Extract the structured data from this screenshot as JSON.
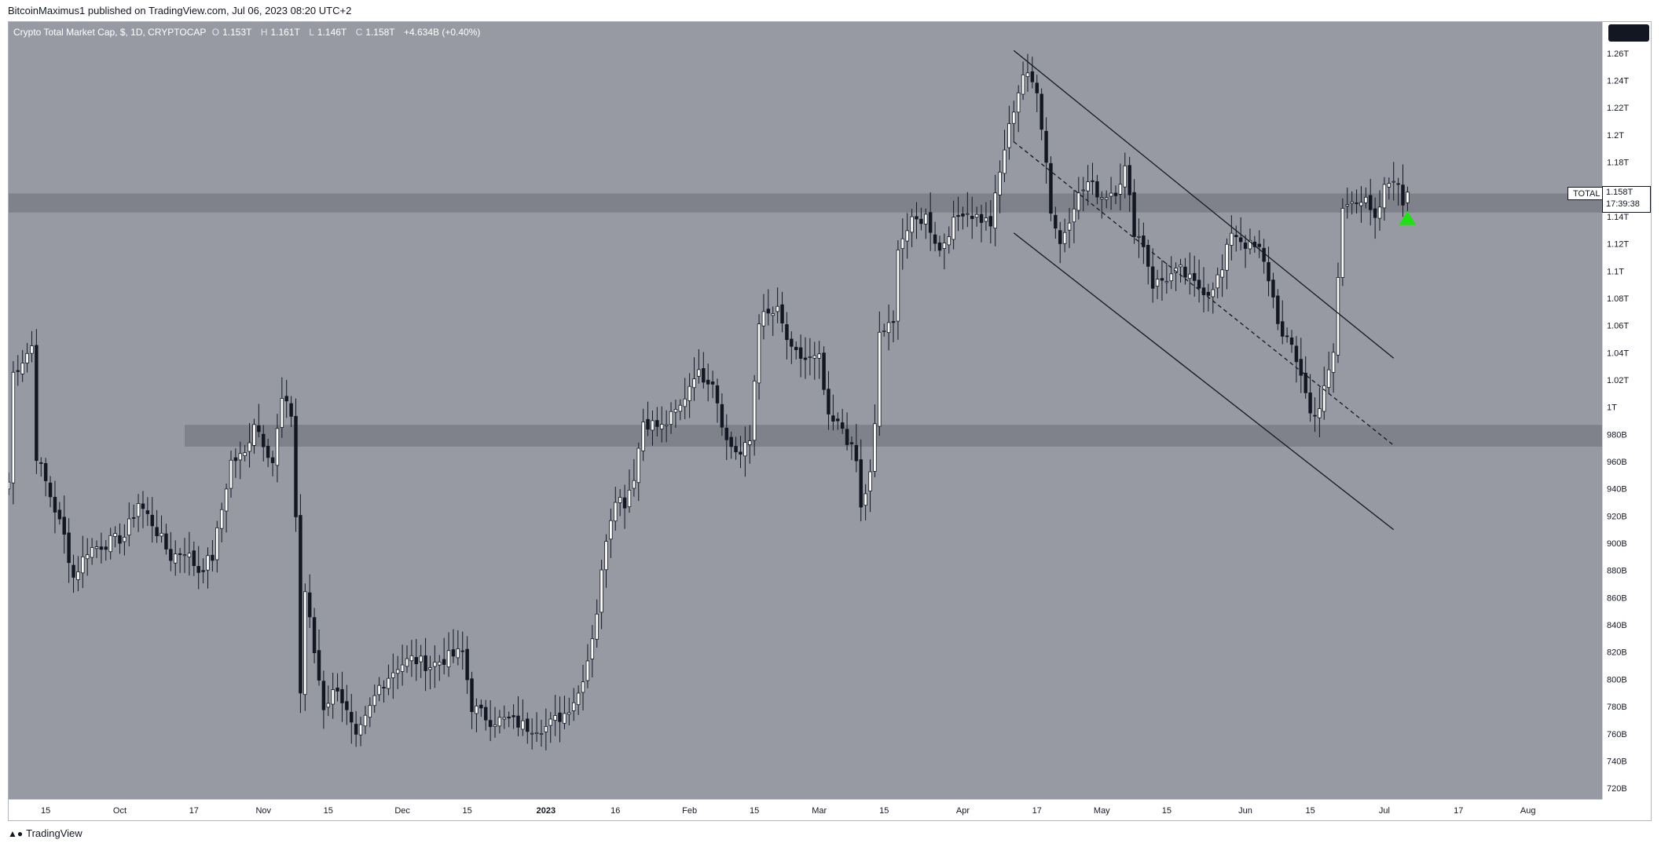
{
  "header": {
    "publisher_line": "BitcoinMaximus1 published on TradingView.com, Jul 06, 2023 08:20 UTC+2"
  },
  "legend": {
    "title": "Crypto Total Market Cap, $, 1D, CRYPTOCAP",
    "o_label": "O",
    "o_value": "1.153T",
    "h_label": "H",
    "h_value": "1.161T",
    "l_label": "L",
    "l_value": "1.146T",
    "c_label": "C",
    "c_value": "1.158T",
    "change": "+4.634B (+0.40%)"
  },
  "series_tag": "TOTAL",
  "last_price": {
    "value": "1.158T",
    "countdown": "17:39:38"
  },
  "footer": {
    "logo_icon": "tradingview-logo-icon",
    "brand": "TradingView"
  },
  "colors": {
    "plot_bg": "#979aa3",
    "zone": "#7f828b",
    "up_candle": "#ffffff",
    "down_candle": "#131722",
    "arrow": "#22e018"
  },
  "chart_data": {
    "type": "candlestick",
    "y_unit": "USD (T = trillion, B = billion)",
    "ylim": [
      0.712,
      1.283
    ],
    "y_ticks": [
      {
        "value": 1.26,
        "label": "1.26T"
      },
      {
        "value": 1.24,
        "label": "1.24T"
      },
      {
        "value": 1.22,
        "label": "1.22T"
      },
      {
        "value": 1.2,
        "label": "1.2T"
      },
      {
        "value": 1.18,
        "label": "1.18T"
      },
      {
        "value": 1.14,
        "label": "1.14T"
      },
      {
        "value": 1.12,
        "label": "1.12T"
      },
      {
        "value": 1.1,
        "label": "1.1T"
      },
      {
        "value": 1.08,
        "label": "1.08T"
      },
      {
        "value": 1.06,
        "label": "1.06T"
      },
      {
        "value": 1.04,
        "label": "1.04T"
      },
      {
        "value": 1.02,
        "label": "1.02T"
      },
      {
        "value": 1.0,
        "label": "1T"
      },
      {
        "value": 0.98,
        "label": "980B"
      },
      {
        "value": 0.96,
        "label": "960B"
      },
      {
        "value": 0.94,
        "label": "940B"
      },
      {
        "value": 0.92,
        "label": "920B"
      },
      {
        "value": 0.9,
        "label": "900B"
      },
      {
        "value": 0.88,
        "label": "880B"
      },
      {
        "value": 0.86,
        "label": "860B"
      },
      {
        "value": 0.84,
        "label": "840B"
      },
      {
        "value": 0.82,
        "label": "820B"
      },
      {
        "value": 0.8,
        "label": "800B"
      },
      {
        "value": 0.78,
        "label": "780B"
      },
      {
        "value": 0.76,
        "label": "760B"
      },
      {
        "value": 0.74,
        "label": "740B"
      },
      {
        "value": 0.72,
        "label": "720B"
      }
    ],
    "x_start": "2022-09-07",
    "x_end": "2023-08-17",
    "x_ticks": [
      {
        "date": "2022-09-15",
        "label": "15"
      },
      {
        "date": "2022-10-01",
        "label": "Oct"
      },
      {
        "date": "2022-10-17",
        "label": "17"
      },
      {
        "date": "2022-11-01",
        "label": "Nov"
      },
      {
        "date": "2022-11-15",
        "label": "15"
      },
      {
        "date": "2022-12-01",
        "label": "Dec"
      },
      {
        "date": "2022-12-15",
        "label": "15"
      },
      {
        "date": "2023-01-01",
        "label": "2023"
      },
      {
        "date": "2023-01-16",
        "label": "16"
      },
      {
        "date": "2023-02-01",
        "label": "Feb"
      },
      {
        "date": "2023-02-15",
        "label": "15"
      },
      {
        "date": "2023-03-01",
        "label": "Mar"
      },
      {
        "date": "2023-03-15",
        "label": "15"
      },
      {
        "date": "2023-04-01",
        "label": "Apr"
      },
      {
        "date": "2023-04-17",
        "label": "17"
      },
      {
        "date": "2023-05-01",
        "label": "May"
      },
      {
        "date": "2023-05-15",
        "label": "15"
      },
      {
        "date": "2023-06-01",
        "label": "Jun"
      },
      {
        "date": "2023-06-15",
        "label": "15"
      },
      {
        "date": "2023-07-01",
        "label": "Jul"
      },
      {
        "date": "2023-07-17",
        "label": "17"
      },
      {
        "date": "2023-08-01",
        "label": "Aug"
      }
    ],
    "close_path": [
      [
        "2022-09-07",
        0.945
      ],
      [
        "2022-09-08",
        1.025
      ],
      [
        "2022-09-12",
        1.045
      ],
      [
        "2022-09-13",
        0.965
      ],
      [
        "2022-09-16",
        0.935
      ],
      [
        "2022-09-19",
        0.905
      ],
      [
        "2022-09-21",
        0.875
      ],
      [
        "2022-09-24",
        0.895
      ],
      [
        "2022-09-28",
        0.9
      ],
      [
        "2022-10-02",
        0.905
      ],
      [
        "2022-10-05",
        0.93
      ],
      [
        "2022-10-08",
        0.915
      ],
      [
        "2022-10-12",
        0.89
      ],
      [
        "2022-10-15",
        0.895
      ],
      [
        "2022-10-18",
        0.88
      ],
      [
        "2022-10-21",
        0.89
      ],
      [
        "2022-10-25",
        0.96
      ],
      [
        "2022-10-28",
        0.965
      ],
      [
        "2022-10-30",
        0.99
      ],
      [
        "2022-11-01",
        0.975
      ],
      [
        "2022-11-03",
        0.96
      ],
      [
        "2022-11-05",
        1.005
      ],
      [
        "2022-11-07",
        0.995
      ],
      [
        "2022-11-08",
        0.92
      ],
      [
        "2022-11-09",
        0.79
      ],
      [
        "2022-11-10",
        0.865
      ],
      [
        "2022-11-12",
        0.82
      ],
      [
        "2022-11-14",
        0.78
      ],
      [
        "2022-11-17",
        0.795
      ],
      [
        "2022-11-21",
        0.755
      ],
      [
        "2022-11-23",
        0.77
      ],
      [
        "2022-11-26",
        0.795
      ],
      [
        "2022-11-30",
        0.81
      ],
      [
        "2022-12-03",
        0.815
      ],
      [
        "2022-12-07",
        0.81
      ],
      [
        "2022-12-10",
        0.815
      ],
      [
        "2022-12-14",
        0.82
      ],
      [
        "2022-12-16",
        0.78
      ],
      [
        "2022-12-20",
        0.77
      ],
      [
        "2022-12-24",
        0.77
      ],
      [
        "2022-12-28",
        0.765
      ],
      [
        "2023-01-01",
        0.765
      ],
      [
        "2023-01-05",
        0.775
      ],
      [
        "2023-01-08",
        0.79
      ],
      [
        "2023-01-10",
        0.815
      ],
      [
        "2023-01-12",
        0.85
      ],
      [
        "2023-01-14",
        0.905
      ],
      [
        "2023-01-16",
        0.935
      ],
      [
        "2023-01-18",
        0.93
      ],
      [
        "2023-01-20",
        0.95
      ],
      [
        "2023-01-22",
        0.99
      ],
      [
        "2023-01-26",
        0.985
      ],
      [
        "2023-01-30",
        1.0
      ],
      [
        "2023-02-02",
        1.025
      ],
      [
        "2023-02-06",
        1.02
      ],
      [
        "2023-02-09",
        0.975
      ],
      [
        "2023-02-12",
        0.965
      ],
      [
        "2023-02-14",
        0.975
      ],
      [
        "2023-02-16",
        1.065
      ],
      [
        "2023-02-20",
        1.07
      ],
      [
        "2023-02-23",
        1.04
      ],
      [
        "2023-02-26",
        1.035
      ],
      [
        "2023-03-01",
        1.035
      ],
      [
        "2023-03-03",
        0.99
      ],
      [
        "2023-03-06",
        0.985
      ],
      [
        "2023-03-09",
        0.96
      ],
      [
        "2023-03-10",
        0.925
      ],
      [
        "2023-03-12",
        0.95
      ],
      [
        "2023-03-13",
        0.985
      ],
      [
        "2023-03-14",
        1.055
      ],
      [
        "2023-03-17",
        1.06
      ],
      [
        "2023-03-18",
        1.12
      ],
      [
        "2023-03-21",
        1.135
      ],
      [
        "2023-03-24",
        1.14
      ],
      [
        "2023-03-27",
        1.115
      ],
      [
        "2023-03-29",
        1.13
      ],
      [
        "2023-04-01",
        1.145
      ],
      [
        "2023-04-04",
        1.14
      ],
      [
        "2023-04-07",
        1.135
      ],
      [
        "2023-04-10",
        1.19
      ],
      [
        "2023-04-12",
        1.22
      ],
      [
        "2023-04-14",
        1.245
      ],
      [
        "2023-04-17",
        1.235
      ],
      [
        "2023-04-19",
        1.18
      ],
      [
        "2023-04-20",
        1.145
      ],
      [
        "2023-04-22",
        1.12
      ],
      [
        "2023-04-25",
        1.15
      ],
      [
        "2023-04-28",
        1.165
      ],
      [
        "2023-05-01",
        1.155
      ],
      [
        "2023-05-04",
        1.16
      ],
      [
        "2023-05-06",
        1.175
      ],
      [
        "2023-05-08",
        1.13
      ],
      [
        "2023-05-10",
        1.12
      ],
      [
        "2023-05-12",
        1.09
      ],
      [
        "2023-05-15",
        1.095
      ],
      [
        "2023-05-18",
        1.1
      ],
      [
        "2023-05-21",
        1.09
      ],
      [
        "2023-05-24",
        1.085
      ],
      [
        "2023-05-27",
        1.1
      ],
      [
        "2023-05-29",
        1.13
      ],
      [
        "2023-06-01",
        1.12
      ],
      [
        "2023-06-04",
        1.115
      ],
      [
        "2023-06-06",
        1.095
      ],
      [
        "2023-06-09",
        1.05
      ],
      [
        "2023-06-11",
        1.045
      ],
      [
        "2023-06-13",
        1.025
      ],
      [
        "2023-06-15",
        0.995
      ],
      [
        "2023-06-17",
        1.0
      ],
      [
        "2023-06-19",
        1.025
      ],
      [
        "2023-06-20",
        1.04
      ],
      [
        "2023-06-21",
        1.095
      ],
      [
        "2023-06-22",
        1.145
      ],
      [
        "2023-06-24",
        1.155
      ],
      [
        "2023-06-27",
        1.15
      ],
      [
        "2023-06-29",
        1.135
      ],
      [
        "2023-07-01",
        1.16
      ],
      [
        "2023-07-03",
        1.17
      ],
      [
        "2023-07-05",
        1.15
      ],
      [
        "2023-07-06",
        1.158
      ]
    ],
    "zones": [
      {
        "from_date": "2022-09-07",
        "to_date": "2023-08-17",
        "y_low": 1.143,
        "y_high": 1.157
      },
      {
        "from_date": "2022-10-15",
        "to_date": "2023-08-17",
        "y_low": 0.971,
        "y_high": 0.987
      }
    ],
    "channel_lines": [
      {
        "style": "solid",
        "start": [
          "2023-04-12",
          1.262
        ],
        "end": [
          "2023-07-03",
          1.036
        ]
      },
      {
        "style": "dashed",
        "start": [
          "2023-04-12",
          1.195
        ],
        "end": [
          "2023-07-03",
          0.972
        ]
      },
      {
        "style": "solid",
        "start": [
          "2023-04-12",
          1.128
        ],
        "end": [
          "2023-07-03",
          0.91
        ]
      }
    ],
    "arrow": {
      "date": "2023-07-06",
      "y": 1.139
    },
    "last_value": 1.158
  }
}
